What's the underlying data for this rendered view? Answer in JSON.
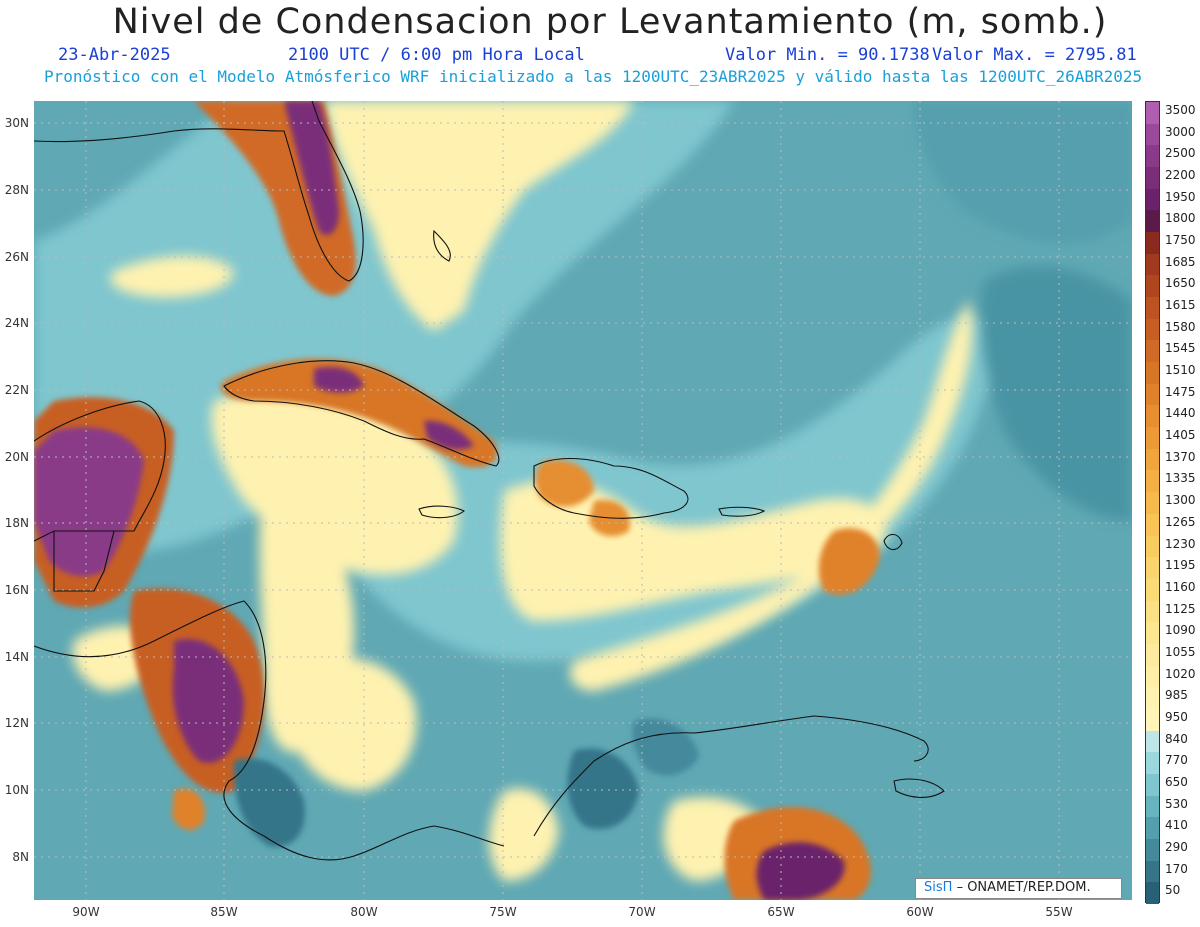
{
  "header": {
    "title": "Nivel de Condensacion por Levantamiento (m, somb.)",
    "date": "23-Abr-2025",
    "time": "2100 UTC / 6:00 pm Hora Local",
    "min_label": "Valor Min. = 90.1738",
    "max_label": "Valor Max. = 2795.81",
    "subtitle": "Pronóstico con el Modelo Atmósferico WRF inicializado a las 1200UTC_23ABR2025 y válido hasta las  1200UTC_26ABR2025"
  },
  "map": {
    "lat_ticks": [
      "30N",
      "28N",
      "26N",
      "24N",
      "22N",
      "20N",
      "18N",
      "16N",
      "14N",
      "12N",
      "10N",
      "8N"
    ],
    "lon_ticks": [
      "90W",
      "85W",
      "80W",
      "75W",
      "70W",
      "65W",
      "60W",
      "55W"
    ],
    "background_color": "#5fa8b4"
  },
  "colorbar": {
    "labels": [
      "3500",
      "3000",
      "2500",
      "2200",
      "1950",
      "1800",
      "1750",
      "1685",
      "1650",
      "1615",
      "1580",
      "1545",
      "1510",
      "1475",
      "1440",
      "1405",
      "1370",
      "1335",
      "1300",
      "1265",
      "1230",
      "1195",
      "1160",
      "1125",
      "1090",
      "1055",
      "1020",
      "985",
      "950",
      "840",
      "770",
      "650",
      "530",
      "410",
      "290",
      "170",
      "50"
    ],
    "colors": [
      "#b05fb0",
      "#9b4a9b",
      "#8a3a88",
      "#7a2e7a",
      "#6b226a",
      "#5a1a4a",
      "#8a2a1e",
      "#a03a1e",
      "#b0461e",
      "#bf5222",
      "#c85e24",
      "#d06a26",
      "#d87628",
      "#e0822c",
      "#e68e30",
      "#ec9a36",
      "#f0a63c",
      "#f4b042",
      "#f6ba4c",
      "#f8c456",
      "#f9cc60",
      "#fad46c",
      "#fbda78",
      "#fce084",
      "#fde690",
      "#fdea9c",
      "#feeea6",
      "#fff2b0",
      "#fff5b8",
      "#bde6e9",
      "#9ad8de",
      "#7fc6cf",
      "#66b4c0",
      "#549fae",
      "#45899c",
      "#36748a",
      "#286078"
    ]
  },
  "credit": {
    "logo": "SisΠ",
    "org": "– ONAMET/REP.DOM."
  }
}
